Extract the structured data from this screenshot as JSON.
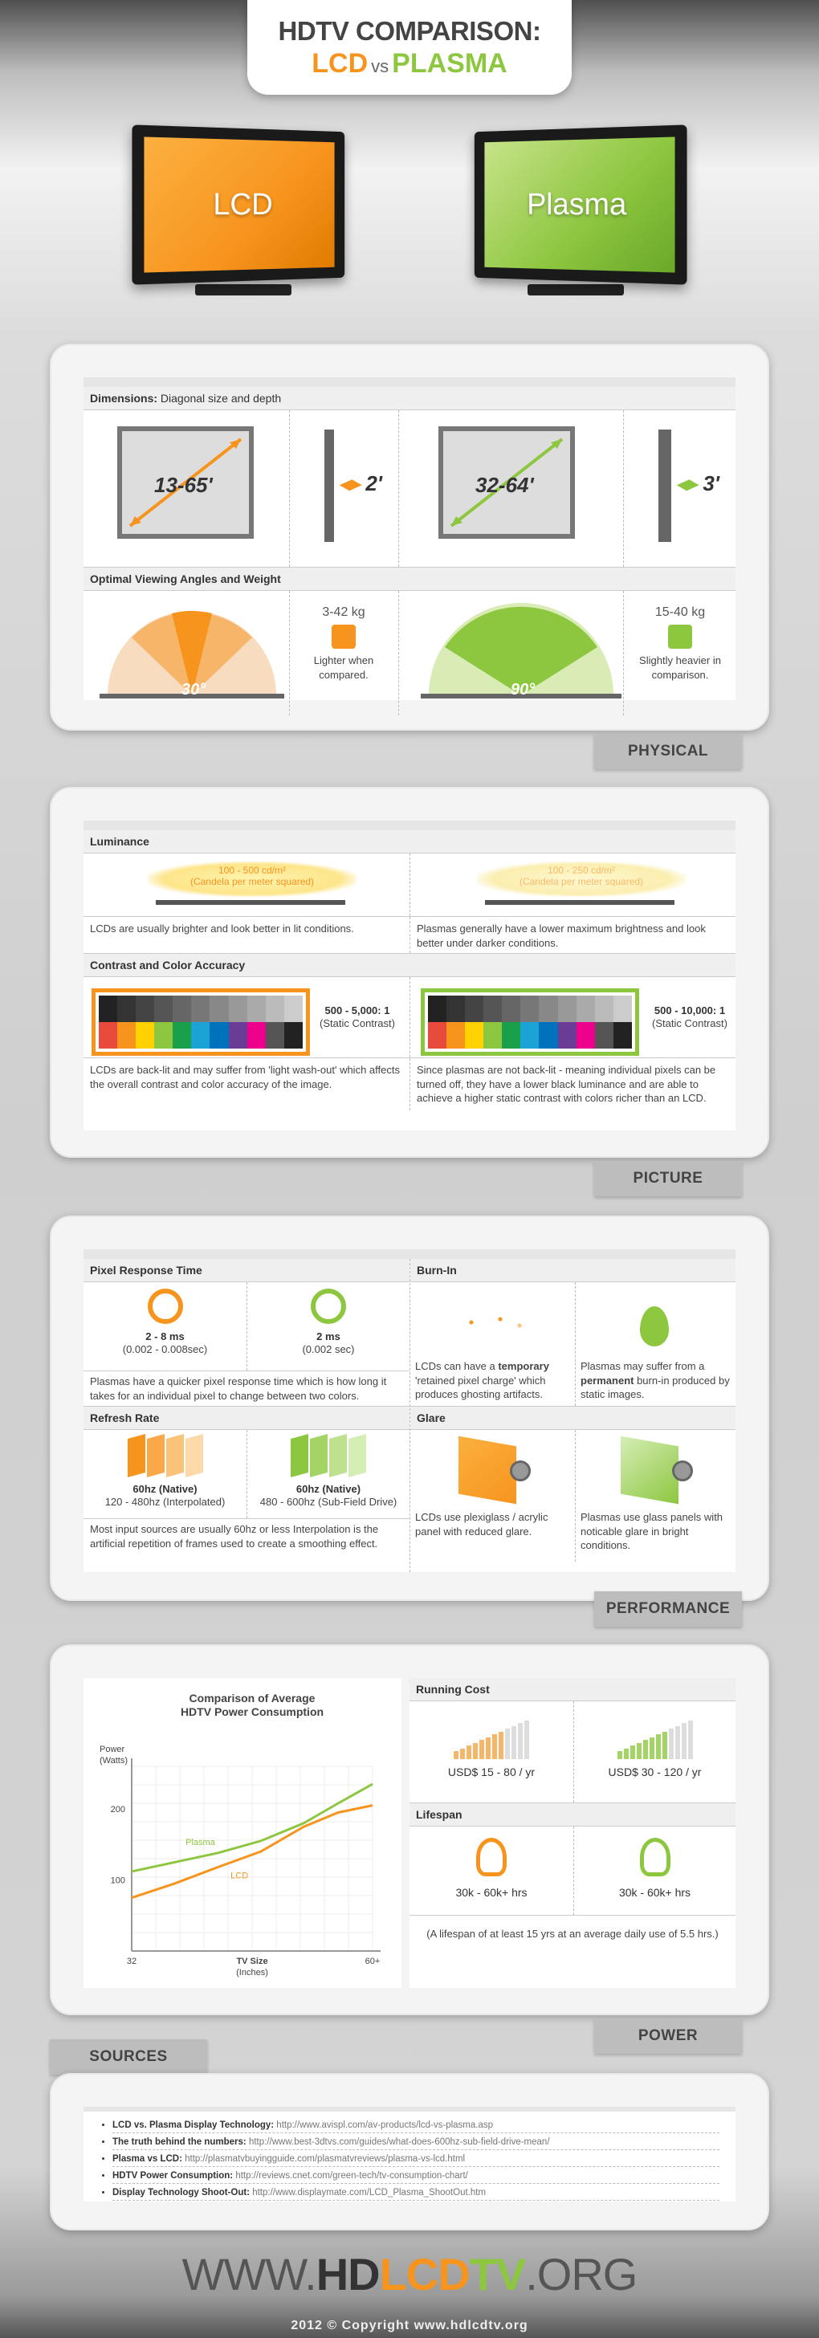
{
  "header": {
    "line1": "HDTV COMPARISON:",
    "lcd": "LCD",
    "vs": "vs",
    "plasma": "PLASMA"
  },
  "tvs": {
    "lcd_label": "LCD",
    "plasma_label": "Plasma"
  },
  "physical": {
    "dimensions_title": "Dimensions:",
    "dimensions_sub": "Diagonal size and depth",
    "lcd_size": "13-65'",
    "lcd_depth": "2'",
    "plasma_size": "32-64'",
    "plasma_depth": "3'",
    "viewing_title": "Optimal Viewing Angles and Weight",
    "lcd_angle": "30°",
    "plasma_angle": "90°",
    "lcd_weight": "3-42 kg",
    "lcd_weight_note": "Lighter when compared.",
    "plasma_weight": "15-40 kg",
    "plasma_weight_note": "Slightly heavier in comparison.",
    "tab": "PHYSICAL"
  },
  "picture": {
    "luminance_title": "Luminance",
    "lcd_lum": "100 - 500 cd/m²",
    "lcd_lum_sub": "(Candela per meter squared)",
    "plasma_lum": "100 - 250 cd/m²",
    "plasma_lum_sub": "(Candela per meter squared)",
    "lcd_lum_text": "LCDs  are usually brighter and look better in lit conditions.",
    "plasma_lum_text": "Plasmas generally have a lower maximum brightness and look better under darker conditions.",
    "contrast_title": "Contrast and Color Accuracy",
    "lcd_contrast": "500 - 5,000: 1",
    "lcd_contrast_sub": "(Static Contrast)",
    "plasma_contrast": "500 - 10,000: 1",
    "plasma_contrast_sub": "(Static Contrast)",
    "lcd_contrast_text": "LCDs are back-lit and may suffer from 'light wash-out' which affects the overall contrast and color accuracy of the image.",
    "plasma_contrast_text": "Since plasmas are not back-lit - meaning individual pixels can be turned off, they have a lower black luminance and are able to achieve a higher static contrast with colors richer than an LCD.",
    "tab": "PICTURE"
  },
  "performance": {
    "pixel_title": "Pixel Response Time",
    "lcd_ms": "2 - 8 ms",
    "lcd_ms_sub": "(0.002 - 0.008sec)",
    "plasma_ms": "2 ms",
    "plasma_ms_sub": "(0.002 sec)",
    "pixel_text": "Plasmas have a quicker pixel response time which is how long it takes  for an individual pixel to change between two colors.",
    "burn_title": "Burn-In",
    "lcd_burn_pre": "LCDs can have a ",
    "lcd_burn_bold": "temporary",
    "lcd_burn_post": " 'retained pixel charge' which produces ghosting artifacts.",
    "plasma_burn_pre": "Plasmas may suffer from a ",
    "plasma_burn_bold": "permanent",
    "plasma_burn_post": " burn-in produced by static images.",
    "refresh_title": "Refresh Rate",
    "lcd_hz": "60hz (Native)",
    "lcd_hz_sub": "120 - 480hz (Interpolated)",
    "plasma_hz": "60hz (Native)",
    "plasma_hz_sub": "480 - 600hz (Sub-Field Drive)",
    "refresh_text": "Most input sources are usually 60hz or less Interpolation is the artificial repetition of frames used to create a smoothing effect.",
    "glare_title": "Glare",
    "lcd_glare": "LCDs use plexiglass / acrylic panel with reduced glare.",
    "plasma_glare": "Plasmas use glass panels with noticable glare in bright conditions.",
    "tab": "PERFORMANCE"
  },
  "power": {
    "running_title": "Running Cost",
    "lcd_cost": "USD$ 15 - 80 / yr",
    "plasma_cost": "USD$ 30 - 120 / yr",
    "lifespan_title": "Lifespan",
    "lcd_life": "30k - 60k+ hrs",
    "plasma_life": "30k - 60k+ hrs",
    "lifespan_note": "(A lifespan of at least 15 yrs at an average daily use of  5.5 hrs.)",
    "tab": "POWER"
  },
  "chart_data": {
    "type": "line",
    "title": "Comparison of Average HDTV Power Consumption",
    "ylabel": "Power (Watts)",
    "xlabel": "TV Size (Inches)",
    "x": [
      32,
      60
    ],
    "xticks": [
      "32",
      "60+"
    ],
    "yticks": [
      100,
      200
    ],
    "series": [
      {
        "name": "Plasma",
        "color": "#8dc63f",
        "points": [
          [
            32,
            112
          ],
          [
            37,
            125
          ],
          [
            42,
            138
          ],
          [
            47,
            155
          ],
          [
            52,
            180
          ],
          [
            56,
            208
          ],
          [
            60,
            235
          ]
        ]
      },
      {
        "name": "LCD",
        "color": "#f7941d",
        "points": [
          [
            32,
            75
          ],
          [
            37,
            95
          ],
          [
            42,
            118
          ],
          [
            47,
            140
          ],
          [
            52,
            175
          ],
          [
            56,
            195
          ],
          [
            60,
            205
          ]
        ]
      }
    ]
  },
  "sources": {
    "title": "SOURCES",
    "items": [
      {
        "name": "LCD vs. Plasma Display Technology:",
        "url": "http://www.avispl.com/av-products/lcd-vs-plasma.asp"
      },
      {
        "name": "The truth behind the numbers:",
        "url": "http://www.best-3dtvs.com/guides/what-does-600hz-sub-field-drive-mean/"
      },
      {
        "name": "Plasma vs LCD:",
        "url": "http://plasmatvbuyingguide.com/plasmatvreviews/plasma-vs-lcd.html"
      },
      {
        "name": "HDTV Power Consumption:",
        "url": "http://reviews.cnet.com/green-tech/tv-consumption-chart/"
      },
      {
        "name": "Display Technology Shoot-Out:",
        "url": "http://www.displaymate.com/LCD_Plasma_ShootOut.htm"
      }
    ]
  },
  "footer": {
    "www": "WWW.",
    "hd": "HD",
    "lcd": "LCD",
    "tv": "TV",
    ".org": ".ORG",
    "copyright": "2012 © Copyright www.hdlcdtv.org"
  },
  "colors": {
    "lcd": "#f7941d",
    "plasma": "#8dc63f"
  }
}
